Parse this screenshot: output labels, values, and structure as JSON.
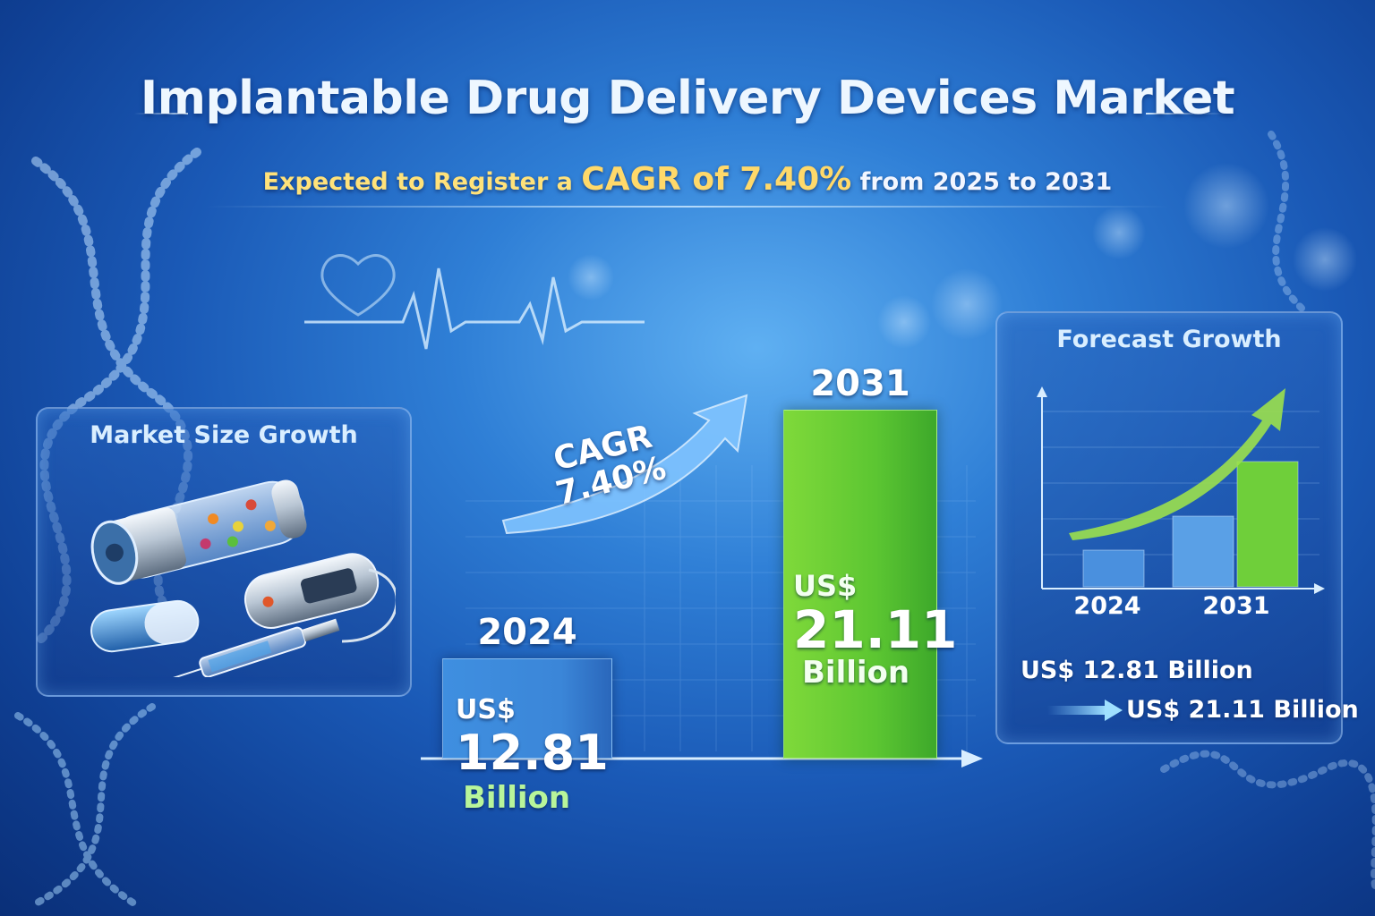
{
  "header": {
    "title": "Implantable Drug Delivery Devices Market",
    "subtitle_prefix": "Expected to Register a",
    "subtitle_highlight": "CAGR of 7.40%",
    "subtitle_suffix": "from 2025 to 2031"
  },
  "left_panel": {
    "title": "Market Size Growth",
    "illustration_icon": "implantable-devices-illustration-icon"
  },
  "main_chart": {
    "cagr_label": "CAGR",
    "cagr_value": "7.40%",
    "bar_2024": {
      "year": "2024",
      "prefix": "US$",
      "value": "12.81",
      "unit": "Billion"
    },
    "bar_2031": {
      "year": "2031",
      "prefix": "US$",
      "value": "21.11",
      "unit": "Billion"
    }
  },
  "right_panel": {
    "title": "Forecast Growth",
    "x_labels": [
      "2024",
      "2031"
    ],
    "value_2024": "US$ 12.81 Billion",
    "value_2031": "US$ 21.11 Billion"
  },
  "colors": {
    "accent_yellow": "#ffd96a",
    "bar_blue": "#3b86d8",
    "bar_green": "#5cc632",
    "background": "#1a59b6"
  },
  "chart_data": [
    {
      "type": "bar",
      "categories": [
        "2024",
        "2031"
      ],
      "values": [
        12.81,
        21.11
      ],
      "unit": "US$ Billion",
      "annotation": "CAGR 7.40%"
    },
    {
      "type": "bar",
      "title": "Forecast Growth",
      "categories": [
        "2024",
        "",
        "2031"
      ],
      "values": [
        12.81,
        16.5,
        21.11
      ],
      "unit": "US$ Billion",
      "grid": true
    }
  ]
}
